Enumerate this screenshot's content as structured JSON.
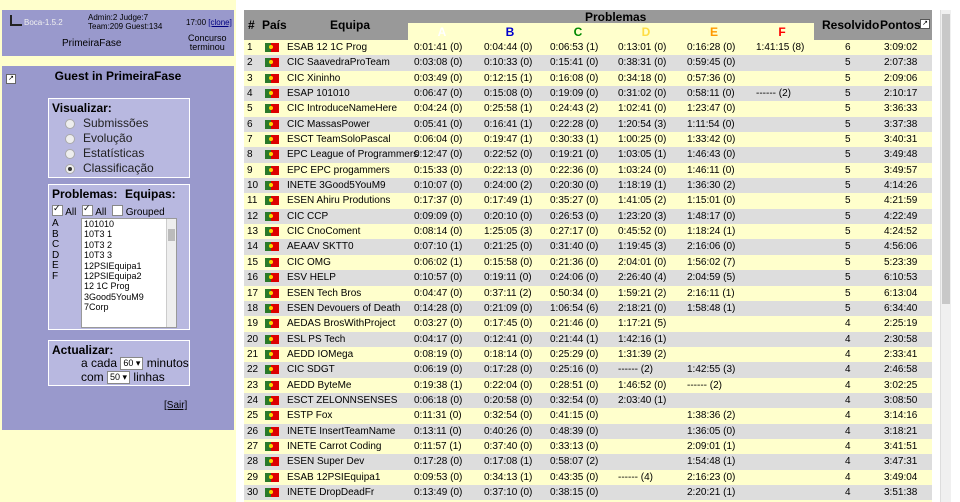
{
  "header": {
    "logo_text": "Boca-1.5.2",
    "admin_info": "Admin:2 Judge:7",
    "team_info": "Team:209 Guest:134",
    "clock": "17:00",
    "clone_link": "[clone]",
    "phase": "PrimeiraFase",
    "status_line1": "Concurso",
    "status_line2": "terminou"
  },
  "sidebar": {
    "guest_title": "Guest in PrimeiraFase",
    "view_heading": "Visualizar:",
    "view_options": [
      "Submissões",
      "Evolução",
      "Estatísticas",
      "Classificação"
    ],
    "view_selected": "Classificação",
    "problems_heading": "Problemas:",
    "teams_heading": "Equipas:",
    "all_label_1": "All",
    "all_label_2": "All",
    "grouped_label": "Grouped",
    "problem_letters": [
      "A",
      "B",
      "C",
      "D",
      "E",
      "F"
    ],
    "team_list": [
      "101010",
      "10T3 1",
      "10T3 2",
      "10T3 3",
      "12PSIEquipa1",
      "12PSIEquipa2",
      "12 1C Prog",
      "3Good5YouM9",
      "7Corp"
    ],
    "update_heading": "Actualizar:",
    "every_label": "a cada",
    "minutes_value": "60",
    "minutes_label": "minutos",
    "with_label": "com",
    "lines_value": "50",
    "lines_label": "linhas",
    "logout": "[Sair]"
  },
  "table": {
    "col_rank": "#",
    "col_country": "País",
    "col_team": "Equipa",
    "col_problems": "Problemas",
    "col_solved": "Resolvido",
    "col_points": "Pontos",
    "problem_letters": [
      {
        "letter": "A",
        "color": "#ffffff"
      },
      {
        "letter": "B",
        "color": "#0000cc"
      },
      {
        "letter": "C",
        "color": "#008800"
      },
      {
        "letter": "D",
        "color": "#ffdd44"
      },
      {
        "letter": "E",
        "color": "#ff9900"
      },
      {
        "letter": "F",
        "color": "#ff0000"
      }
    ],
    "rows": [
      {
        "rank": "1",
        "team": "ESAB 12 1C Prog",
        "p": [
          "0:01:41 (0)",
          "0:04:44 (0)",
          "0:06:53 (1)",
          "0:13:01 (0)",
          "0:16:28 (0)",
          "1:41:15 (8)"
        ],
        "solved": "6",
        "points": "3:09:02"
      },
      {
        "rank": "2",
        "team": "CIC SaavedraProTeam",
        "p": [
          "0:03:08 (0)",
          "0:10:33 (0)",
          "0:15:41 (0)",
          "0:38:31 (0)",
          "0:59:45 (0)",
          ""
        ],
        "solved": "5",
        "points": "2:07:38"
      },
      {
        "rank": "3",
        "team": "CIC Xininho",
        "p": [
          "0:03:49 (0)",
          "0:12:15 (1)",
          "0:16:08 (0)",
          "0:34:18 (0)",
          "0:57:36 (0)",
          ""
        ],
        "solved": "5",
        "points": "2:09:06"
      },
      {
        "rank": "4",
        "team": "ESAP 101010",
        "p": [
          "0:06:47 (0)",
          "0:15:08 (0)",
          "0:19:09 (0)",
          "0:31:02 (0)",
          "0:58:11 (0)",
          "------ (2)"
        ],
        "solved": "5",
        "points": "2:10:17"
      },
      {
        "rank": "5",
        "team": "CIC IntroduceNameHere",
        "p": [
          "0:04:24 (0)",
          "0:25:58 (1)",
          "0:24:43 (2)",
          "1:02:41 (0)",
          "1:23:47 (0)",
          ""
        ],
        "solved": "5",
        "points": "3:36:33"
      },
      {
        "rank": "6",
        "team": "CIC MassasPower",
        "p": [
          "0:05:41 (0)",
          "0:16:41 (1)",
          "0:22:28 (0)",
          "1:20:54 (3)",
          "1:11:54 (0)",
          ""
        ],
        "solved": "5",
        "points": "3:37:38"
      },
      {
        "rank": "7",
        "team": "ESCT TeamSoloPascal",
        "p": [
          "0:06:04 (0)",
          "0:19:47 (1)",
          "0:30:33 (1)",
          "1:00:25 (0)",
          "1:33:42 (0)",
          ""
        ],
        "solved": "5",
        "points": "3:40:31"
      },
      {
        "rank": "8",
        "team": "EPC League of Programmers",
        "p": [
          "0:12:47 (0)",
          "0:22:52 (0)",
          "0:19:21 (0)",
          "1:03:05 (1)",
          "1:46:43 (0)",
          ""
        ],
        "solved": "5",
        "points": "3:49:48"
      },
      {
        "rank": "9",
        "team": "EPC EPC progammers",
        "p": [
          "0:15:33 (0)",
          "0:22:13 (0)",
          "0:22:36 (0)",
          "1:03:24 (0)",
          "1:46:11 (0)",
          ""
        ],
        "solved": "5",
        "points": "3:49:57"
      },
      {
        "rank": "10",
        "team": "INETE 3Good5YouM9",
        "p": [
          "0:10:07 (0)",
          "0:24:00 (2)",
          "0:20:30 (0)",
          "1:18:19 (1)",
          "1:36:30 (2)",
          ""
        ],
        "solved": "5",
        "points": "4:14:26"
      },
      {
        "rank": "11",
        "team": "ESEN Ahiru Produtions",
        "p": [
          "0:17:37 (0)",
          "0:17:49 (1)",
          "0:35:27 (0)",
          "1:41:05 (2)",
          "1:15:01 (0)",
          ""
        ],
        "solved": "5",
        "points": "4:21:59"
      },
      {
        "rank": "12",
        "team": "CIC CCP",
        "p": [
          "0:09:09 (0)",
          "0:20:10 (0)",
          "0:26:53 (0)",
          "1:23:20 (3)",
          "1:48:17 (0)",
          ""
        ],
        "solved": "5",
        "points": "4:22:49"
      },
      {
        "rank": "13",
        "team": "CIC CnoComent",
        "p": [
          "0:08:14 (0)",
          "1:25:05 (3)",
          "0:27:17 (0)",
          "0:45:52 (0)",
          "1:18:24 (1)",
          ""
        ],
        "solved": "5",
        "points": "4:24:52"
      },
      {
        "rank": "14",
        "team": "AEAAV SKTT0",
        "p": [
          "0:07:10 (1)",
          "0:21:25 (0)",
          "0:31:40 (0)",
          "1:19:45 (3)",
          "2:16:06 (0)",
          ""
        ],
        "solved": "5",
        "points": "4:56:06"
      },
      {
        "rank": "15",
        "team": "CIC OMG",
        "p": [
          "0:06:02 (1)",
          "0:15:58 (0)",
          "0:21:36 (0)",
          "2:04:01 (0)",
          "1:56:02 (7)",
          ""
        ],
        "solved": "5",
        "points": "5:23:39"
      },
      {
        "rank": "16",
        "team": "ESV HELP",
        "p": [
          "0:10:57 (0)",
          "0:19:11 (0)",
          "0:24:06 (0)",
          "2:26:40 (4)",
          "2:04:59 (5)",
          ""
        ],
        "solved": "5",
        "points": "6:10:53"
      },
      {
        "rank": "17",
        "team": "ESEN Tech Bros",
        "p": [
          "0:04:47 (0)",
          "0:37:11 (2)",
          "0:50:34 (0)",
          "1:59:21 (2)",
          "2:16:11 (1)",
          ""
        ],
        "solved": "5",
        "points": "6:13:04"
      },
      {
        "rank": "18",
        "team": "ESEN Devouers of Death",
        "p": [
          "0:14:28 (0)",
          "0:21:09 (0)",
          "1:06:54 (6)",
          "2:18:21 (0)",
          "1:58:48 (1)",
          ""
        ],
        "solved": "5",
        "points": "6:34:40"
      },
      {
        "rank": "19",
        "team": "AEDAS BrosWithProject",
        "p": [
          "0:03:27 (0)",
          "0:17:45 (0)",
          "0:21:46 (0)",
          "1:17:21 (5)",
          "",
          ""
        ],
        "solved": "4",
        "points": "2:25:19"
      },
      {
        "rank": "20",
        "team": "ESL PS Tech",
        "p": [
          "0:04:17 (0)",
          "0:12:41 (0)",
          "0:21:44 (1)",
          "1:42:16 (1)",
          "",
          ""
        ],
        "solved": "4",
        "points": "2:30:58"
      },
      {
        "rank": "21",
        "team": "AEDD IOMega",
        "p": [
          "0:08:19 (0)",
          "0:18:14 (0)",
          "0:25:29 (0)",
          "1:31:39 (2)",
          "",
          ""
        ],
        "solved": "4",
        "points": "2:33:41"
      },
      {
        "rank": "22",
        "team": "CIC SDGT",
        "p": [
          "0:06:19 (0)",
          "0:17:28 (0)",
          "0:25:16 (0)",
          "------ (2)",
          "1:42:55 (3)",
          ""
        ],
        "solved": "4",
        "points": "2:46:58"
      },
      {
        "rank": "23",
        "team": "AEDD ByteMe",
        "p": [
          "0:19:38 (1)",
          "0:22:04 (0)",
          "0:28:51 (0)",
          "1:46:52 (0)",
          "------ (2)",
          ""
        ],
        "solved": "4",
        "points": "3:02:25"
      },
      {
        "rank": "24",
        "team": "ESCT ZELONNSENSES",
        "p": [
          "0:06:18 (0)",
          "0:20:58 (0)",
          "0:32:54 (0)",
          "2:03:40 (1)",
          "",
          ""
        ],
        "solved": "4",
        "points": "3:08:50"
      },
      {
        "rank": "25",
        "team": "ESTP Fox",
        "p": [
          "0:11:31 (0)",
          "0:32:54 (0)",
          "0:41:15 (0)",
          "",
          "1:38:36 (2)",
          ""
        ],
        "solved": "4",
        "points": "3:14:16"
      },
      {
        "rank": "26",
        "team": "INETE InsertTeamName",
        "p": [
          "0:13:11 (0)",
          "0:40:26 (0)",
          "0:48:39 (0)",
          "",
          "1:36:05 (0)",
          ""
        ],
        "solved": "4",
        "points": "3:18:21"
      },
      {
        "rank": "27",
        "team": "INETE Carrot Coding",
        "p": [
          "0:11:57 (1)",
          "0:37:40 (0)",
          "0:33:13 (0)",
          "",
          "2:09:01 (1)",
          ""
        ],
        "solved": "4",
        "points": "3:41:51"
      },
      {
        "rank": "28",
        "team": "ESEN Super Dev",
        "p": [
          "0:17:28 (0)",
          "0:17:08 (1)",
          "0:58:07 (2)",
          "",
          "1:54:48 (1)",
          ""
        ],
        "solved": "4",
        "points": "3:47:31"
      },
      {
        "rank": "29",
        "team": "ESAB 12PSIEquipa1",
        "p": [
          "0:09:53 (0)",
          "0:34:13 (1)",
          "0:43:35 (0)",
          "------ (4)",
          "2:16:23 (0)",
          ""
        ],
        "solved": "4",
        "points": "3:49:04"
      },
      {
        "rank": "30",
        "team": "INETE DropDeadFr",
        "p": [
          "0:13:49 (0)",
          "0:37:10 (0)",
          "0:38:15 (0)",
          "",
          "2:20:21 (1)",
          ""
        ],
        "solved": "4",
        "points": "3:51:38"
      }
    ]
  }
}
